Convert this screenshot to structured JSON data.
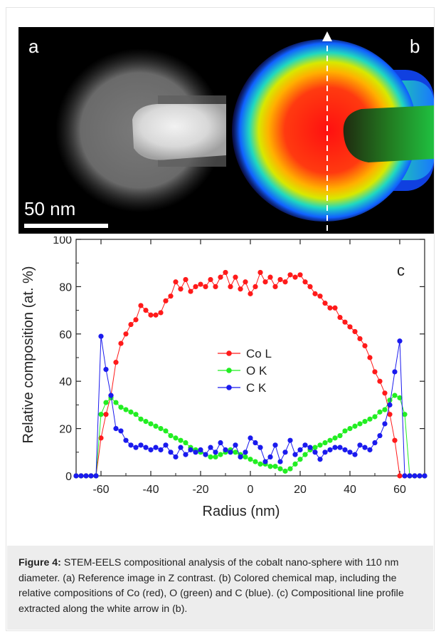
{
  "panels": {
    "a_label": "a",
    "b_label": "b",
    "scale_bar_label": "50 nm"
  },
  "caption": {
    "label": "Figure 4:",
    "text": " STEM-EELS compositional analysis of the cobalt nano-sphere with 110 nm diameter. (a) Reference image in Z contrast. (b) Colored chemical map, including the relative compositions of Co (red), O (green) and C (blue). (c) Compositional line profile extracted along the white arrow in (b)."
  },
  "colors": {
    "co": "#ff1a1a",
    "o": "#22ee22",
    "c": "#1a1aee"
  },
  "chart_data": {
    "type": "line",
    "panel_label": "c",
    "xlabel": "Radius (nm)",
    "ylabel": "Relative composition (at. %)",
    "xlim": [
      -70,
      70
    ],
    "ylim": [
      0,
      100
    ],
    "xticks": [
      -60,
      -40,
      -20,
      0,
      20,
      40,
      60
    ],
    "yticks": [
      0,
      20,
      40,
      60,
      80,
      100
    ],
    "grid": false,
    "legend_position": "center",
    "series": [
      {
        "name": "Co L",
        "color": "#ff1a1a",
        "x": [
          -70,
          -68,
          -66,
          -64,
          -62,
          -60,
          -58,
          -56,
          -54,
          -52,
          -50,
          -48,
          -46,
          -44,
          -42,
          -40,
          -38,
          -36,
          -34,
          -32,
          -30,
          -28,
          -26,
          -24,
          -22,
          -20,
          -18,
          -16,
          -14,
          -12,
          -10,
          -8,
          -6,
          -4,
          -2,
          0,
          2,
          4,
          6,
          8,
          10,
          12,
          14,
          16,
          18,
          20,
          22,
          24,
          26,
          28,
          30,
          32,
          34,
          36,
          38,
          40,
          42,
          44,
          46,
          48,
          50,
          52,
          54,
          56,
          58,
          60,
          62,
          64,
          66,
          68,
          70
        ],
        "y": [
          0,
          0,
          0,
          0,
          0,
          16,
          26,
          34,
          48,
          56,
          60,
          64,
          66,
          72,
          70,
          68,
          68,
          69,
          74,
          76,
          82,
          79,
          83,
          78,
          80,
          81,
          80,
          83,
          80,
          84,
          86,
          80,
          84,
          79,
          82,
          77,
          80,
          86,
          82,
          84,
          80,
          83,
          82,
          85,
          84,
          85,
          82,
          80,
          77,
          76,
          73,
          71,
          71,
          67,
          65,
          63,
          61,
          58,
          55,
          50,
          44,
          40,
          35,
          26,
          15,
          0,
          0,
          0,
          0,
          0,
          0
        ]
      },
      {
        "name": "O K",
        "color": "#22ee22",
        "x": [
          -70,
          -68,
          -66,
          -64,
          -62,
          -60,
          -58,
          -56,
          -54,
          -52,
          -50,
          -48,
          -46,
          -44,
          -42,
          -40,
          -38,
          -36,
          -34,
          -32,
          -30,
          -28,
          -26,
          -24,
          -22,
          -20,
          -18,
          -16,
          -14,
          -12,
          -10,
          -8,
          -6,
          -4,
          -2,
          0,
          2,
          4,
          6,
          8,
          10,
          12,
          14,
          16,
          18,
          20,
          22,
          24,
          26,
          28,
          30,
          32,
          34,
          36,
          38,
          40,
          42,
          44,
          46,
          48,
          50,
          52,
          54,
          56,
          58,
          60,
          62,
          64,
          66,
          68,
          70
        ],
        "y": [
          0,
          0,
          0,
          0,
          0,
          26,
          31,
          33,
          31,
          29,
          28,
          27,
          26,
          24,
          23,
          22,
          21,
          20,
          19,
          17,
          16,
          15,
          14,
          12,
          11,
          10,
          9,
          8,
          8,
          9,
          10,
          11,
          10,
          9,
          8,
          7,
          6,
          5,
          5,
          4,
          4,
          3,
          2,
          3,
          5,
          7,
          9,
          11,
          12,
          13,
          14,
          15,
          16,
          17,
          19,
          20,
          21,
          22,
          23,
          24,
          25,
          27,
          28,
          32,
          34,
          33,
          26,
          0,
          0,
          0,
          0
        ]
      },
      {
        "name": "C K",
        "color": "#1a1aee",
        "x": [
          -70,
          -68,
          -66,
          -64,
          -62,
          -60,
          -58,
          -56,
          -54,
          -52,
          -50,
          -48,
          -46,
          -44,
          -42,
          -40,
          -38,
          -36,
          -34,
          -32,
          -30,
          -28,
          -26,
          -24,
          -22,
          -20,
          -18,
          -16,
          -14,
          -12,
          -10,
          -8,
          -6,
          -4,
          -2,
          0,
          2,
          4,
          6,
          8,
          10,
          12,
          14,
          16,
          18,
          20,
          22,
          24,
          26,
          28,
          30,
          32,
          34,
          36,
          38,
          40,
          42,
          44,
          46,
          48,
          50,
          52,
          54,
          56,
          58,
          60,
          62,
          64,
          66,
          68,
          70
        ],
        "y": [
          0,
          0,
          0,
          0,
          0,
          59,
          45,
          34,
          20,
          19,
          15,
          13,
          12,
          13,
          12,
          11,
          12,
          11,
          13,
          10,
          8,
          12,
          9,
          11,
          10,
          11,
          9,
          12,
          10,
          14,
          11,
          10,
          13,
          8,
          10,
          16,
          14,
          12,
          6,
          8,
          13,
          6,
          10,
          15,
          9,
          11,
          13,
          12,
          10,
          7,
          10,
          11,
          12,
          12,
          11,
          10,
          9,
          13,
          12,
          11,
          14,
          17,
          22,
          30,
          44,
          57,
          0,
          0,
          0,
          0,
          0
        ]
      }
    ]
  }
}
